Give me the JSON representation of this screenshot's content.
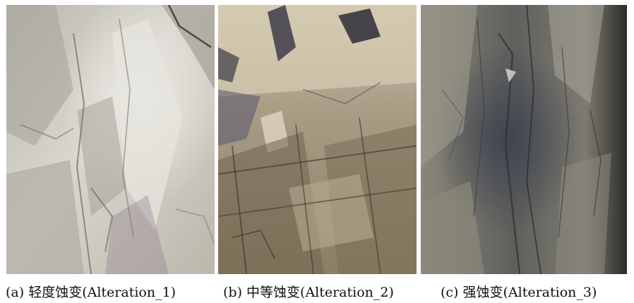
{
  "panels": [
    {
      "caption": "(a)  轻度蚀变(Alteration_1)",
      "image": "light-alteration-rock-photo",
      "colors": {
        "base": "#c9c5b9",
        "light": "#e4e2dc",
        "shadow": "#7c766c",
        "accent": "#8b7a8c"
      }
    },
    {
      "caption": "(b)  中等蚀变(Alteration_2)",
      "image": "moderate-alteration-rock-photo",
      "colors": {
        "base": "#a69a82",
        "light": "#d6cdb4",
        "shadow": "#4a4033",
        "accent": "#5d5b72"
      }
    },
    {
      "caption": "(c)  强蚀变(Alteration_3)",
      "image": "strong-alteration-rock-photo",
      "colors": {
        "base": "#6f6b60",
        "light": "#a8a599",
        "shadow": "#2f302f",
        "accent": "#4c5160"
      }
    }
  ]
}
